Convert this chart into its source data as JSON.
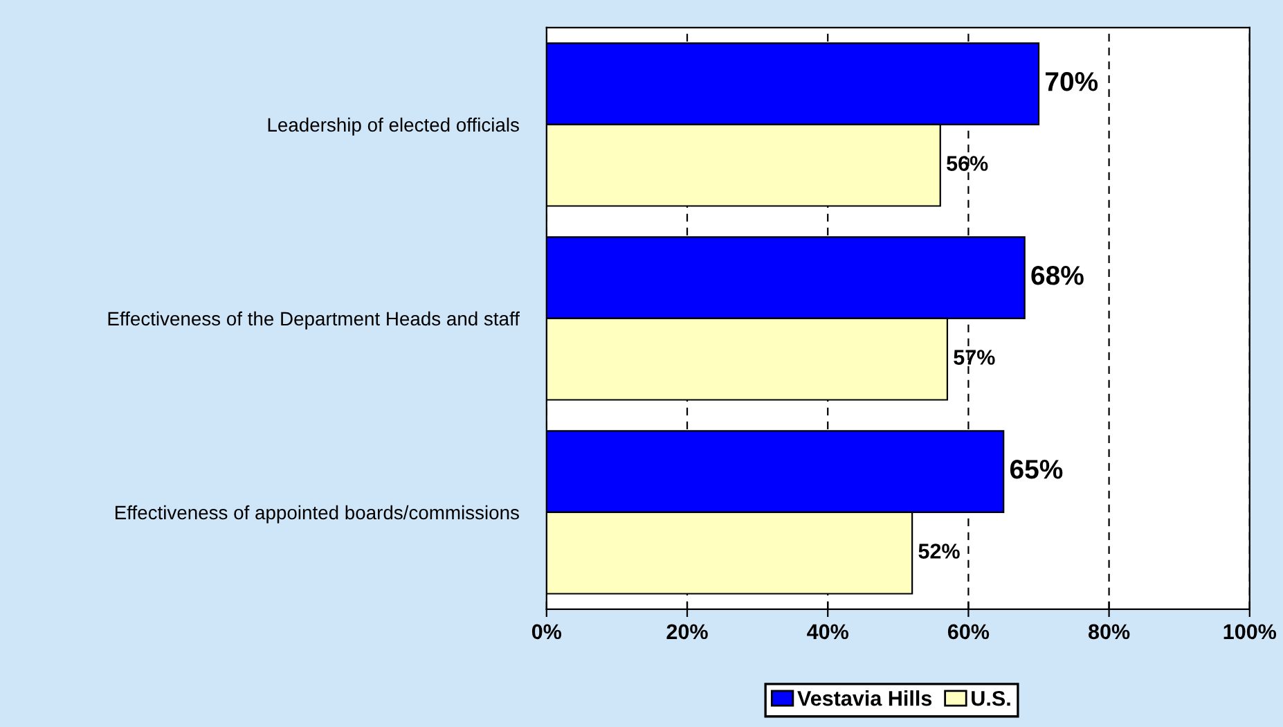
{
  "chart_data": {
    "type": "bar",
    "orientation": "horizontal",
    "categories": [
      "Leadership of elected officials",
      "Effectiveness of the Department Heads and staff",
      "Effectiveness of appointed boards/commissions"
    ],
    "series": [
      {
        "name": "Vestavia Hills",
        "color": "#0000ff",
        "values": [
          70,
          68,
          65
        ],
        "value_labels": [
          "70%",
          "68%",
          "65%"
        ]
      },
      {
        "name": "U.S.",
        "color": "#ffffc0",
        "values": [
          56,
          57,
          52
        ],
        "value_labels": [
          "56%",
          "57%",
          "52%"
        ]
      }
    ],
    "xlim": [
      0,
      100
    ],
    "xticks": [
      {
        "value": 0,
        "label": "0%"
      },
      {
        "value": 20,
        "label": "20%"
      },
      {
        "value": 40,
        "label": "40%"
      },
      {
        "value": 60,
        "label": "60%"
      },
      {
        "value": 80,
        "label": "80%"
      },
      {
        "value": 100,
        "label": "100%"
      }
    ],
    "grid": "x",
    "legend": "bottom"
  }
}
